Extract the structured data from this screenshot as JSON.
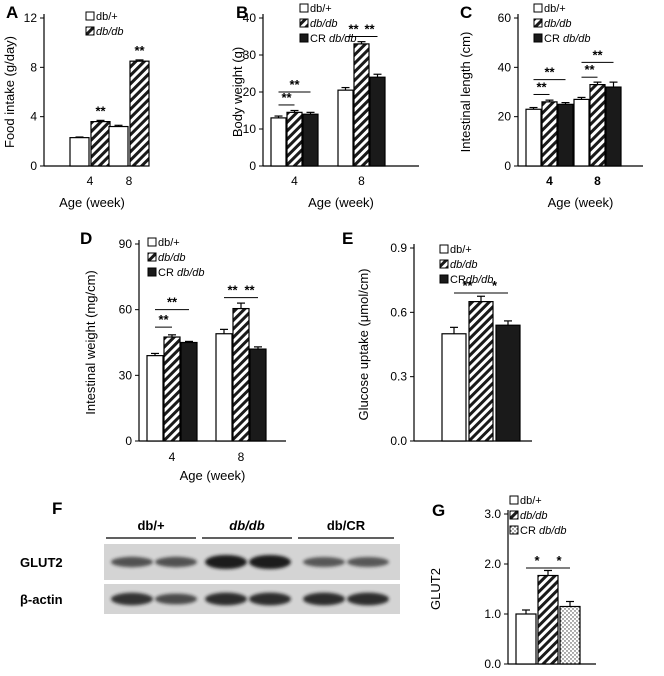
{
  "figure_colors": {
    "open": "#ffffff",
    "filled": "#1a1a1a",
    "blot_bg": "#d4d4d4",
    "band": "#1c1c1c"
  },
  "chart_data": [
    {
      "panel": "A",
      "type": "bar",
      "ylabel": "Food intake (g/day)",
      "xlabel": "Age (week)",
      "categories": [
        "4",
        "8"
      ],
      "ylim": [
        0,
        12
      ],
      "yticks": [
        "0",
        "4",
        "8",
        "12"
      ],
      "series": [
        {
          "name": "db/+",
          "fill": "open",
          "values": [
            2.3,
            3.2
          ],
          "errors": [
            0.05,
            0.1
          ]
        },
        {
          "name": "db/db",
          "fill": "hatch",
          "values": [
            3.6,
            8.5
          ],
          "errors": [
            0.1,
            0.1
          ]
        }
      ],
      "annotations": [
        {
          "text": "**",
          "category": 0,
          "series": 1
        },
        {
          "text": "**",
          "category": 1,
          "series": 1
        }
      ],
      "legend": "top-left"
    },
    {
      "panel": "B",
      "type": "bar",
      "ylabel": "Body weight (g)",
      "xlabel": "Age (week)",
      "categories": [
        "4",
        "8"
      ],
      "ylim": [
        0,
        40
      ],
      "yticks": [
        "0",
        "10",
        "20",
        "30",
        "40"
      ],
      "series": [
        {
          "name": "db/+",
          "fill": "open",
          "values": [
            13,
            20.5
          ],
          "errors": [
            0.5,
            0.7
          ]
        },
        {
          "name": "db/db",
          "fill": "hatch",
          "values": [
            14.5,
            33
          ],
          "errors": [
            0.5,
            0.6
          ]
        },
        {
          "name": "CR db/db",
          "fill": "solid",
          "values": [
            14,
            24
          ],
          "errors": [
            0.5,
            0.8
          ]
        }
      ],
      "annotations": [
        {
          "text": "**",
          "category": 0,
          "from": 0,
          "to": 1,
          "level": 16.5
        },
        {
          "text": "**",
          "category": 0,
          "from": 0,
          "to": 2,
          "level": 20
        },
        {
          "text": "**",
          "category": 1,
          "from": 0,
          "to": 1,
          "level": 35
        },
        {
          "text": "**",
          "category": 1,
          "from": 1,
          "to": 2,
          "level": 35
        }
      ],
      "legend": "top-left"
    },
    {
      "panel": "C",
      "type": "bar",
      "ylabel": "Intestinal length (cm)",
      "xlabel": "Age (week)",
      "categories": [
        "4",
        "8"
      ],
      "ylim": [
        0,
        60
      ],
      "yticks": [
        "0",
        "20",
        "40",
        "60"
      ],
      "series": [
        {
          "name": "db/+",
          "fill": "open",
          "values": [
            23,
            27
          ],
          "errors": [
            0.7,
            0.8
          ]
        },
        {
          "name": "db/db",
          "fill": "hatch",
          "values": [
            26,
            33
          ],
          "errors": [
            0.7,
            1
          ]
        },
        {
          "name": "CR db/db",
          "fill": "solid",
          "values": [
            25,
            32
          ],
          "errors": [
            0.7,
            2
          ]
        }
      ],
      "annotations": [
        {
          "text": "**",
          "category": 0,
          "from": 0,
          "to": 1,
          "level": 29
        },
        {
          "text": "**",
          "category": 0,
          "from": 0,
          "to": 2,
          "level": 35
        },
        {
          "text": "**",
          "category": 1,
          "from": 0,
          "to": 1,
          "level": 36
        },
        {
          "text": "**",
          "category": 1,
          "from": 0,
          "to": 2,
          "level": 42
        }
      ],
      "legend": "top-left"
    },
    {
      "panel": "D",
      "type": "bar",
      "ylabel": "Intestinal weight (mg/cm)",
      "xlabel": "Age (week)",
      "categories": [
        "4",
        "8"
      ],
      "ylim": [
        0,
        90
      ],
      "yticks": [
        "0",
        "30",
        "60",
        "90"
      ],
      "series": [
        {
          "name": "db/+",
          "fill": "open",
          "values": [
            39,
            49
          ],
          "errors": [
            1,
            2
          ]
        },
        {
          "name": "db/db",
          "fill": "hatch",
          "values": [
            47.5,
            60.5
          ],
          "errors": [
            1,
            2.5
          ]
        },
        {
          "name": "CR db/db",
          "fill": "solid",
          "values": [
            45,
            42
          ],
          "errors": [
            0.5,
            1
          ]
        }
      ],
      "annotations": [
        {
          "text": "**",
          "category": 0,
          "from": 0,
          "to": 1,
          "level": 52
        },
        {
          "text": "**",
          "category": 0,
          "from": 0,
          "to": 2,
          "level": 60
        },
        {
          "text": "**",
          "category": 1,
          "from": 0,
          "to": 1,
          "level": 65.5
        },
        {
          "text": "**",
          "category": 1,
          "from": 1,
          "to": 2,
          "level": 65.5
        }
      ],
      "legend": "top-left"
    },
    {
      "panel": "E",
      "type": "bar",
      "ylabel": "Glucose uptake (μmol/cm)",
      "xlabel": "",
      "categories": [
        ""
      ],
      "ylim": [
        0,
        0.9
      ],
      "yticks": [
        "0.0",
        "0.3",
        "0.6",
        "0.9"
      ],
      "series": [
        {
          "name": "db/+",
          "fill": "open",
          "values": [
            0.5
          ],
          "errors": [
            0.03
          ]
        },
        {
          "name": "db/db",
          "fill": "hatch",
          "values": [
            0.65
          ],
          "errors": [
            0.025
          ]
        },
        {
          "name": "CRdb/db",
          "fill": "solid",
          "values": [
            0.54
          ],
          "errors": [
            0.02
          ]
        }
      ],
      "annotations": [
        {
          "text": "**",
          "category": 0,
          "from": 0,
          "to": 1,
          "level": 0.69
        },
        {
          "text": "*",
          "category": 0,
          "from": 1,
          "to": 2,
          "level": 0.69
        }
      ],
      "legend": "top-left"
    },
    {
      "panel": "G",
      "type": "bar",
      "ylabel": "GLUT2",
      "xlabel": "",
      "categories": [
        ""
      ],
      "ylim": [
        0,
        3
      ],
      "yticks": [
        "0.0",
        "1.0",
        "2.0",
        "3.0"
      ],
      "series": [
        {
          "name": "db/+",
          "fill": "open",
          "values": [
            1.0
          ],
          "errors": [
            0.08
          ]
        },
        {
          "name": "db/db",
          "fill": "hatch",
          "values": [
            1.77
          ],
          "errors": [
            0.1
          ]
        },
        {
          "name": "CR db/db",
          "fill": "dots",
          "values": [
            1.15
          ],
          "errors": [
            0.1
          ]
        }
      ],
      "annotations": [
        {
          "text": "*",
          "category": 0,
          "from": 0,
          "to": 1,
          "level": 1.92
        },
        {
          "text": "*",
          "category": 0,
          "from": 1,
          "to": 2,
          "level": 1.92
        }
      ],
      "legend": "top-left"
    }
  ],
  "blot": {
    "panel": "F",
    "groups": [
      "db/+",
      "db/db",
      "db/CR"
    ],
    "rows": [
      {
        "label": "GLUT2",
        "intensity": [
          0.55,
          0.55,
          1.0,
          1.0,
          0.5,
          0.5
        ]
      },
      {
        "label": "β-actin",
        "intensity": [
          0.8,
          0.6,
          0.85,
          0.85,
          0.85,
          0.85
        ]
      }
    ]
  }
}
